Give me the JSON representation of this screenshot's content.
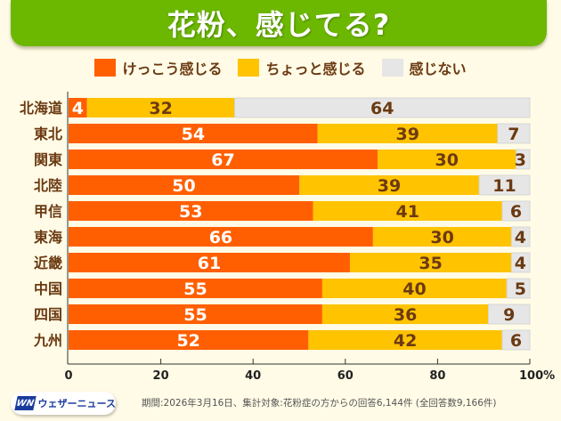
{
  "header": {
    "title": "花粉、感じてる?"
  },
  "legend": [
    {
      "label": "けっこう感じる",
      "color": "#ff5f00"
    },
    {
      "label": "ちょっと感じる",
      "color": "#ffc300"
    },
    {
      "label": "感じない",
      "color": "#e6e6e6"
    }
  ],
  "footer": {
    "logo_mark": "WN",
    "logo_text": "ウェザーニュース",
    "note": "期間:2026年3月16日、集計対象:花粉症の方からの回答6,144件 (全回答数9,166件)"
  },
  "chart_data": {
    "type": "bar",
    "orientation": "horizontal",
    "stacked": true,
    "title": "花粉、感じてる?",
    "categories": [
      "北海道",
      "東北",
      "関東",
      "北陸",
      "甲信",
      "東海",
      "近畿",
      "中国",
      "四国",
      "九州"
    ],
    "series": [
      {
        "name": "けっこう感じる",
        "color": "#ff5f00",
        "label_color": "#ffffff",
        "values": [
          4,
          54,
          67,
          50,
          53,
          66,
          61,
          55,
          55,
          52
        ]
      },
      {
        "name": "ちょっと感じる",
        "color": "#ffc300",
        "label_color": "#6b3a12",
        "values": [
          32,
          39,
          30,
          39,
          41,
          30,
          35,
          40,
          36,
          42
        ]
      },
      {
        "name": "感じない",
        "color": "#e6e6e6",
        "label_color": "#6b3a12",
        "values": [
          64,
          7,
          3,
          11,
          6,
          4,
          4,
          5,
          9,
          6
        ]
      }
    ],
    "xlim": [
      0,
      100
    ],
    "xticks": [
      "0",
      "20",
      "40",
      "60",
      "80",
      "100%"
    ],
    "xtick_values": [
      0,
      20,
      40,
      60,
      80,
      100
    ],
    "legend_position": "top"
  }
}
